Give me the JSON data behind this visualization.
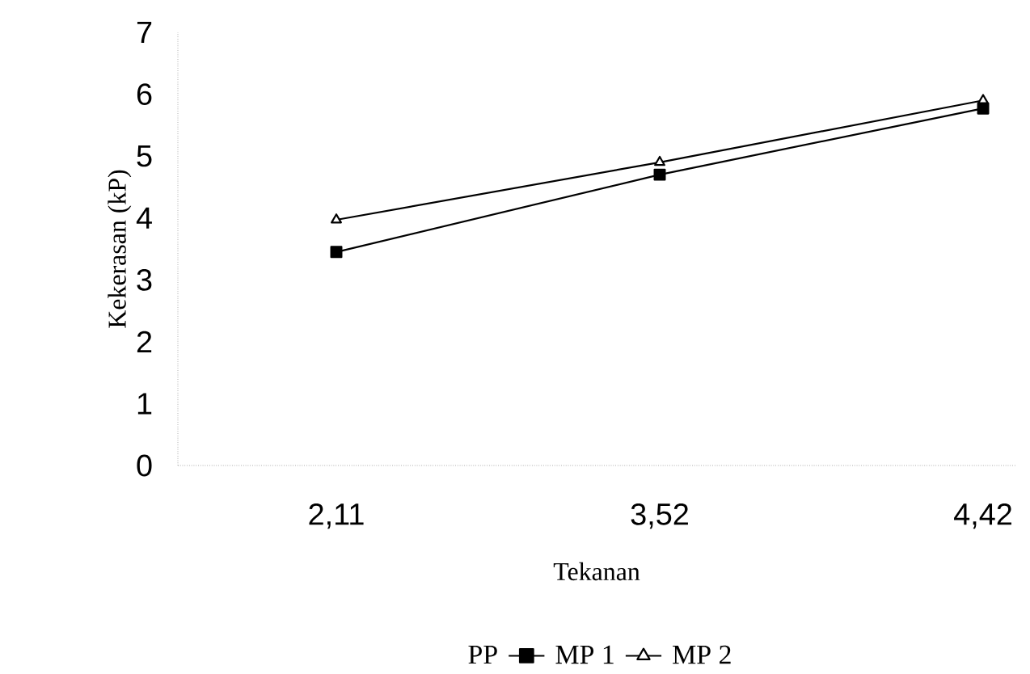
{
  "chart_data": {
    "type": "line",
    "xlabel": "Tekanan",
    "ylabel": "Kekerasan (kP)",
    "categories": [
      "2,11",
      "3,52",
      "4,42"
    ],
    "series": [
      {
        "name": "PP",
        "values": [
          null,
          null,
          null
        ]
      },
      {
        "name": "MP 1",
        "color": "#000000",
        "marker": "square",
        "values": [
          3.45,
          4.7,
          5.77
        ]
      },
      {
        "name": "MP 2",
        "color": "#000000",
        "marker": "triangle",
        "values": [
          3.97,
          4.9,
          5.9
        ]
      }
    ],
    "ylim": [
      0,
      7
    ],
    "yticks": [
      0,
      1,
      2,
      3,
      4,
      5,
      6,
      7
    ],
    "legend": "bottom",
    "grid": false,
    "line_style": "solid"
  }
}
